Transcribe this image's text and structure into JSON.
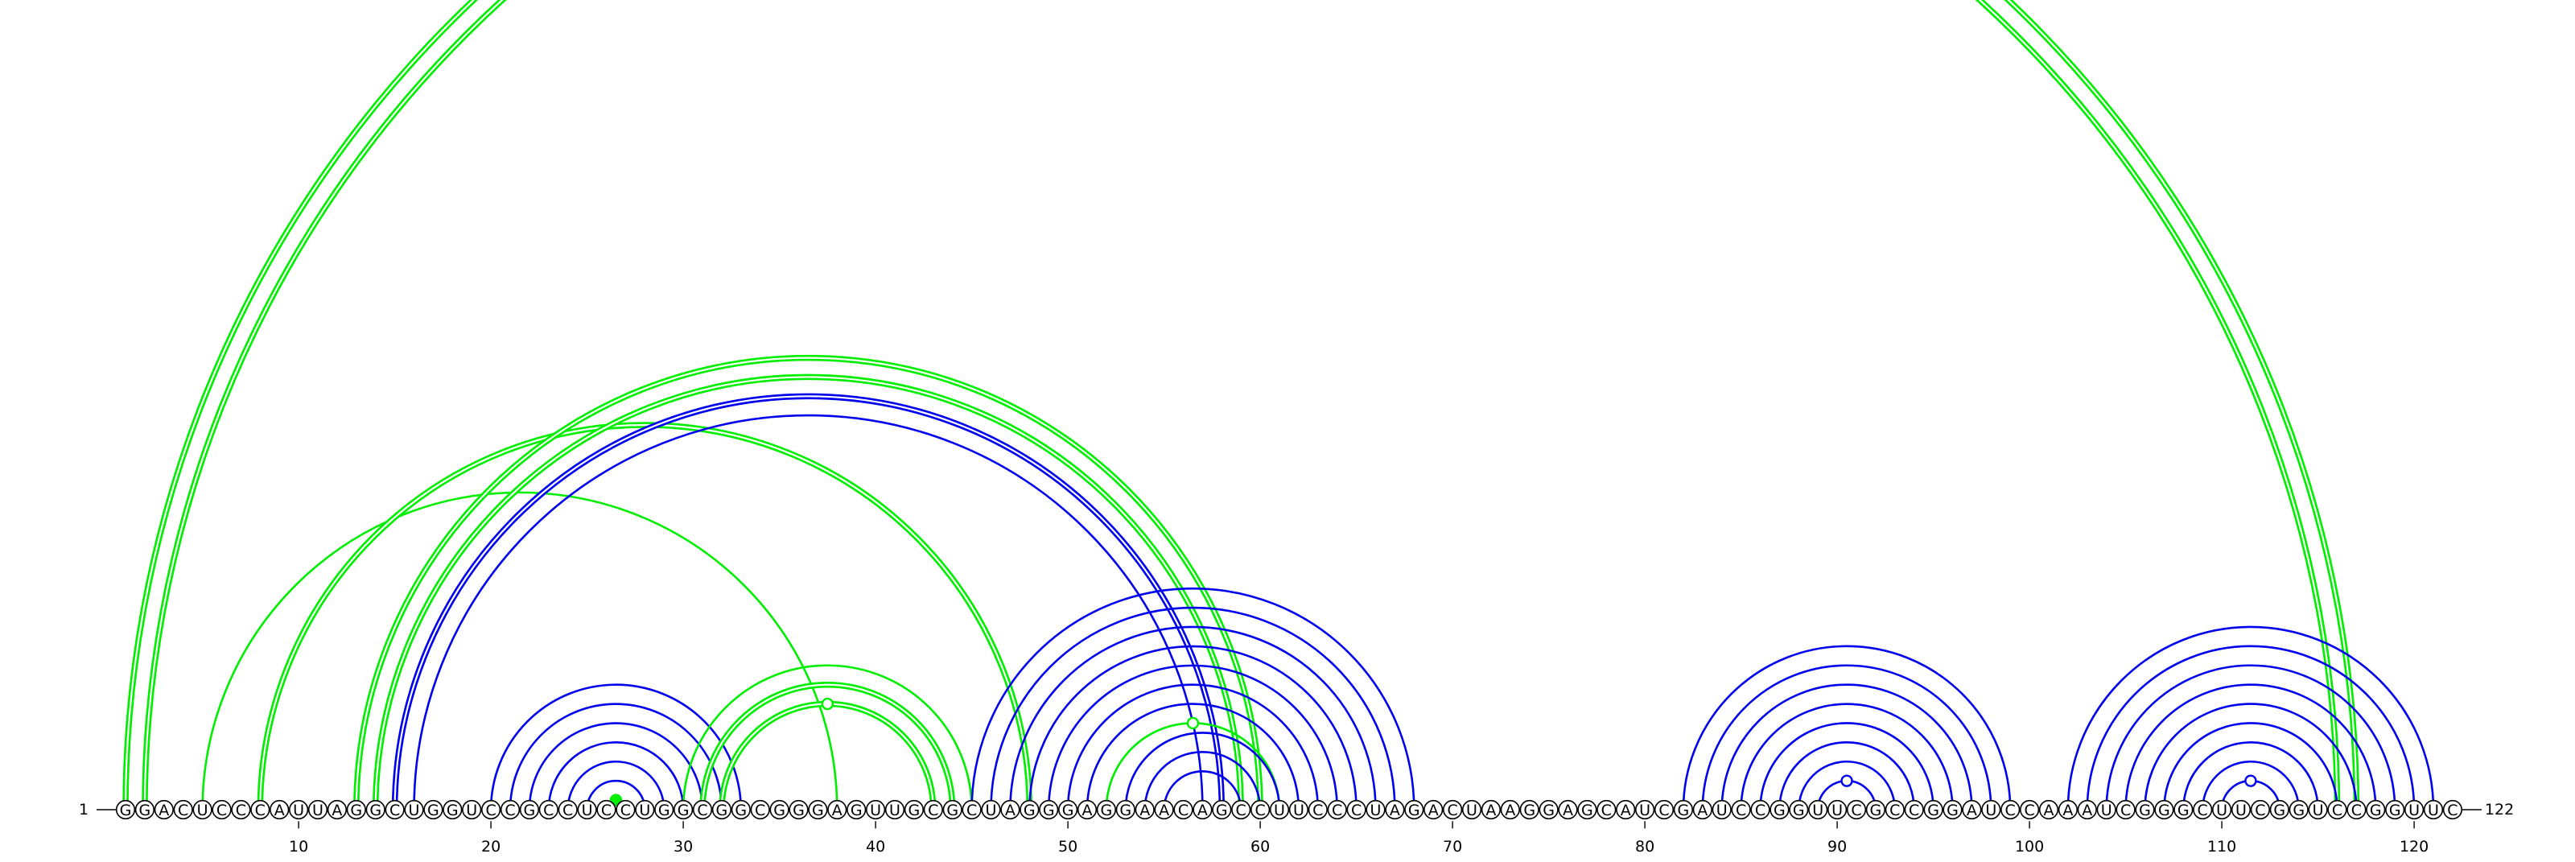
{
  "sequence": {
    "text": "GGACUCCCAUUAGGCUGGUCCGCCUCCUGGCGGCGGGAGUUGCGCUAGGGAGGAACAGCCUUCCCUAGACUAAGGAGCAUCGAUCCGGUUCGCCGGAUCCAAAUCGGGCUUCGGUCCGGUUC",
    "start_label": "1",
    "end_label": "122",
    "tick_labels": [
      "10",
      "20",
      "30",
      "40",
      "50",
      "60",
      "70",
      "80",
      "90",
      "100",
      "110",
      "120"
    ],
    "tick_positions": [
      10,
      20,
      30,
      40,
      50,
      60,
      70,
      80,
      90,
      100,
      110,
      120
    ]
  },
  "colors": {
    "blue_pairs": "#0000ee",
    "green_pairs": "#00ee00",
    "base_fill": "#ffffff",
    "base_stroke": "#000000"
  },
  "arc_groups": [
    {
      "color": "green",
      "style": "double",
      "pairs": [
        [
          1,
          117
        ],
        [
          2,
          116
        ]
      ]
    },
    {
      "color": "green",
      "style": "single",
      "pairs": [
        [
          5,
          38
        ]
      ]
    },
    {
      "color": "green",
      "style": "double",
      "pairs": [
        [
          8,
          48
        ]
      ]
    },
    {
      "color": "green",
      "style": "double",
      "pairs": [
        [
          13,
          60
        ],
        [
          14,
          59
        ]
      ]
    },
    {
      "color": "blue",
      "style": "double",
      "pairs": [
        [
          15,
          58
        ]
      ]
    },
    {
      "color": "blue",
      "style": "single",
      "pairs": [
        [
          16,
          57
        ]
      ]
    },
    {
      "color": "blue",
      "style": "single",
      "pairs": [
        [
          20,
          33
        ],
        [
          21,
          32
        ],
        [
          22,
          31
        ],
        [
          23,
          30
        ],
        [
          24,
          29
        ],
        [
          25,
          28
        ]
      ]
    },
    {
      "color": "green",
      "style": "single",
      "pairs": [
        [
          26,
          27
        ]
      ]
    },
    {
      "color": "green",
      "style": "single",
      "pairs": [
        [
          30,
          45
        ]
      ]
    },
    {
      "color": "green",
      "style": "double",
      "pairs": [
        [
          31,
          44
        ],
        [
          32,
          43
        ]
      ]
    },
    {
      "color": "green",
      "style": "single",
      "pairs": [
        [
          52,
          61
        ]
      ]
    },
    {
      "color": "blue",
      "style": "single",
      "pairs": [
        [
          45,
          68
        ],
        [
          46,
          67
        ],
        [
          47,
          66
        ],
        [
          48,
          65
        ],
        [
          49,
          64
        ],
        [
          50,
          63
        ],
        [
          51,
          62
        ],
        [
          53,
          61
        ],
        [
          54,
          60
        ],
        [
          55,
          59
        ]
      ]
    },
    {
      "color": "blue",
      "style": "single",
      "pairs": [
        [
          82,
          99
        ],
        [
          83,
          98
        ],
        [
          84,
          97
        ],
        [
          85,
          96
        ],
        [
          86,
          95
        ],
        [
          87,
          94
        ],
        [
          88,
          93
        ],
        [
          89,
          92
        ]
      ]
    },
    {
      "color": "blue",
      "style": "single",
      "pairs": [
        [
          102,
          121
        ],
        [
          103,
          120
        ],
        [
          104,
          119
        ],
        [
          105,
          118
        ],
        [
          106,
          117
        ],
        [
          107,
          116
        ],
        [
          108,
          115
        ],
        [
          109,
          114
        ],
        [
          110,
          113
        ]
      ]
    }
  ],
  "markers": [
    {
      "color": "green",
      "filled": true,
      "between": [
        26,
        27
      ]
    },
    {
      "color": "green",
      "filled": false,
      "between": [
        38,
        38
      ]
    },
    {
      "color": "green",
      "filled": false,
      "between": [
        56,
        56
      ]
    },
    {
      "color": "blue",
      "filled": false,
      "between": [
        90,
        91
      ]
    },
    {
      "color": "blue",
      "filled": false,
      "between": [
        111,
        112
      ]
    }
  ]
}
